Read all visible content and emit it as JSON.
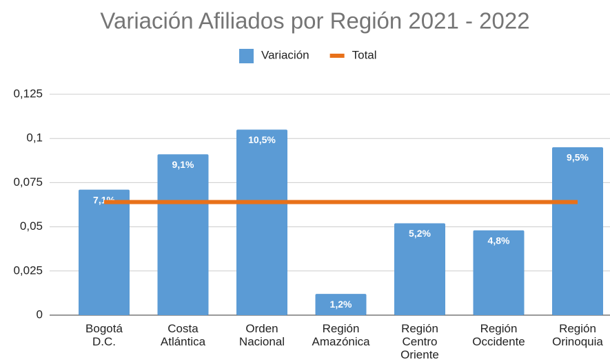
{
  "chart_data": {
    "type": "bar",
    "title": "Variación Afiliados por Región 2021 - 2022",
    "categories": [
      "Bogotá D.C.",
      "Costa Atlántica",
      "Orden Nacional",
      "Región Amazónica",
      "Región Centro Oriente",
      "Región Occidente",
      "Región Orinoquia"
    ],
    "series": [
      {
        "name": "Variación",
        "type": "bar",
        "color": "#5b9bd5",
        "values": [
          0.071,
          0.091,
          0.105,
          0.012,
          0.052,
          0.048,
          0.095
        ],
        "value_labels": [
          "7,1%",
          "9,1%",
          "10,5%",
          "1,2%",
          "5,2%",
          "4,8%",
          "9,5%"
        ]
      },
      {
        "name": "Total",
        "type": "line",
        "color": "#e8711a",
        "values": [
          0.064,
          0.064,
          0.064,
          0.064,
          0.064,
          0.064,
          0.064
        ]
      }
    ],
    "ylim": [
      0,
      0.125
    ],
    "yticks": [
      0,
      {
        "value": 0.025,
        "label": "0,025"
      },
      {
        "value": 0.05,
        "label": "0,05"
      },
      {
        "value": 0.075,
        "label": "0,075"
      },
      {
        "value": 0.1,
        "label": "0,1"
      },
      {
        "value": 0.125,
        "label": "0,125"
      }
    ],
    "grid": true,
    "legend": "top"
  }
}
